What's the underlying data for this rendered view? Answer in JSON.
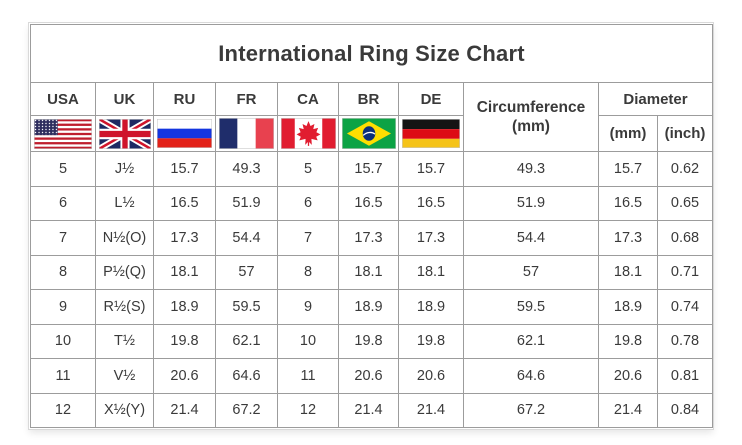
{
  "title": "International Ring Size Chart",
  "header": {
    "countries": [
      "USA",
      "UK",
      "RU",
      "FR",
      "CA",
      "BR",
      "DE"
    ],
    "circumference_line1": "Circumference",
    "circumference_line2": "(mm)",
    "diameter": "Diameter",
    "diameter_mm": "(mm)",
    "diameter_inch": "(inch)"
  },
  "icons": {
    "flags": [
      "usa-flag-icon",
      "uk-flag-icon",
      "russia-flag-icon",
      "france-flag-icon",
      "canada-flag-icon",
      "brazil-flag-icon",
      "germany-flag-icon"
    ]
  },
  "colors": {
    "border": "#9c9c9c",
    "text": "#3a3a3a",
    "title_text": "#262626",
    "background": "#ffffff"
  },
  "chart_data": {
    "type": "table",
    "title": "International Ring Size Chart",
    "columns": [
      "USA",
      "UK",
      "RU",
      "FR",
      "CA",
      "BR",
      "DE",
      "Circumference (mm)",
      "Diameter (mm)",
      "Diameter (inch)"
    ],
    "rows": [
      [
        "5",
        "J½",
        "15.7",
        "49.3",
        "5",
        "15.7",
        "15.7",
        "49.3",
        "15.7",
        "0.62"
      ],
      [
        "6",
        "L½",
        "16.5",
        "51.9",
        "6",
        "16.5",
        "16.5",
        "51.9",
        "16.5",
        "0.65"
      ],
      [
        "7",
        "N½(O)",
        "17.3",
        "54.4",
        "7",
        "17.3",
        "17.3",
        "54.4",
        "17.3",
        "0.68"
      ],
      [
        "8",
        "P½(Q)",
        "18.1",
        "57",
        "8",
        "18.1",
        "18.1",
        "57",
        "18.1",
        "0.71"
      ],
      [
        "9",
        "R½(S)",
        "18.9",
        "59.5",
        "9",
        "18.9",
        "18.9",
        "59.5",
        "18.9",
        "0.74"
      ],
      [
        "10",
        "T½",
        "19.8",
        "62.1",
        "10",
        "19.8",
        "19.8",
        "62.1",
        "19.8",
        "0.78"
      ],
      [
        "11",
        "V½",
        "20.6",
        "64.6",
        "11",
        "20.6",
        "20.6",
        "64.6",
        "20.6",
        "0.81"
      ],
      [
        "12",
        "X½(Y)",
        "21.4",
        "67.2",
        "12",
        "21.4",
        "21.4",
        "67.2",
        "21.4",
        "0.84"
      ]
    ]
  }
}
